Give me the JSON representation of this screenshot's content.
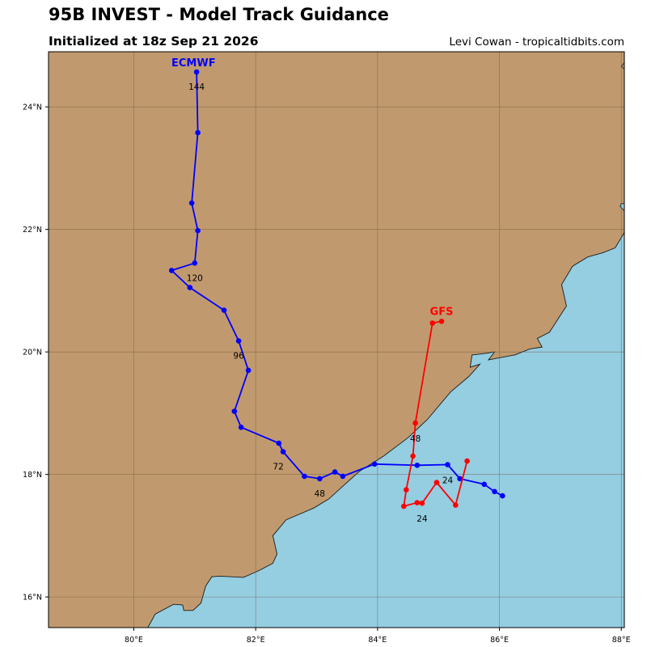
{
  "header": {
    "title": "95B INVEST - Model Track Guidance",
    "subtitle": "Initialized at 18z Sep 21 2026",
    "credit": "Levi Cowan - tropicaltidbits.com"
  },
  "colors": {
    "land": "#c09a6e",
    "ocean": "#95cde1",
    "grid": "#6e5a46",
    "coast": "#1a1a1a",
    "gfs": "#ff0000",
    "ecmwf": "#0000ff"
  },
  "map": {
    "lon_range": [
      78.6,
      88.05
    ],
    "lat_range": [
      15.5,
      24.9
    ],
    "x_ticks": [
      {
        "value": 80,
        "label": "80°E"
      },
      {
        "value": 82,
        "label": "82°E"
      },
      {
        "value": 84,
        "label": "84°E"
      },
      {
        "value": 86,
        "label": "86°E"
      },
      {
        "value": 88,
        "label": "88°E"
      }
    ],
    "y_ticks": [
      {
        "value": 16,
        "label": "16°N"
      },
      {
        "value": 18,
        "label": "18°N"
      },
      {
        "value": 20,
        "label": "20°N"
      },
      {
        "value": 22,
        "label": "22°N"
      },
      {
        "value": 24,
        "label": "24°N"
      }
    ],
    "coastline": [
      [
        80.23,
        15.5
      ],
      [
        80.35,
        15.72
      ],
      [
        80.65,
        15.88
      ],
      [
        80.8,
        15.87
      ],
      [
        80.82,
        15.78
      ],
      [
        80.97,
        15.78
      ],
      [
        81.1,
        15.9
      ],
      [
        81.18,
        16.18
      ],
      [
        81.28,
        16.33
      ],
      [
        81.42,
        16.34
      ],
      [
        81.8,
        16.32
      ],
      [
        82.05,
        16.43
      ],
      [
        82.28,
        16.55
      ],
      [
        82.35,
        16.7
      ],
      [
        82.31,
        16.88
      ],
      [
        82.28,
        17.0
      ],
      [
        82.5,
        17.26
      ],
      [
        82.95,
        17.45
      ],
      [
        83.2,
        17.6
      ],
      [
        83.42,
        17.8
      ],
      [
        83.7,
        18.05
      ],
      [
        84.1,
        18.3
      ],
      [
        84.5,
        18.6
      ],
      [
        84.82,
        18.9
      ],
      [
        85.2,
        19.35
      ],
      [
        85.5,
        19.6
      ],
      [
        85.68,
        19.8
      ],
      [
        85.52,
        19.75
      ],
      [
        85.55,
        19.95
      ],
      [
        85.8,
        19.98
      ],
      [
        85.92,
        20.0
      ],
      [
        85.82,
        19.87
      ],
      [
        86.25,
        19.95
      ],
      [
        86.5,
        20.05
      ],
      [
        86.7,
        20.08
      ],
      [
        86.62,
        20.22
      ],
      [
        86.82,
        20.32
      ],
      [
        86.95,
        20.52
      ],
      [
        87.1,
        20.75
      ],
      [
        87.02,
        21.1
      ],
      [
        87.2,
        21.4
      ],
      [
        87.45,
        21.55
      ],
      [
        87.7,
        21.62
      ],
      [
        87.9,
        21.7
      ],
      [
        88.05,
        21.95
      ]
    ],
    "ne_islet": [
      [
        88.05,
        22.3
      ],
      [
        87.98,
        22.38
      ],
      [
        88.0,
        22.42
      ],
      [
        88.05,
        22.42
      ]
    ],
    "ne_corner": [
      [
        88.05,
        24.72
      ],
      [
        88.0,
        24.66
      ],
      [
        88.05,
        24.62
      ]
    ]
  },
  "tracks": [
    {
      "name": "ECMWF",
      "color": "#0000ff",
      "name_anchor": [
        80.98,
        24.66
      ],
      "points": [
        [
          86.05,
          17.65
        ],
        [
          85.92,
          17.72
        ],
        [
          85.75,
          17.84
        ],
        [
          85.35,
          17.93
        ],
        [
          85.15,
          18.16
        ],
        [
          84.65,
          18.15
        ],
        [
          83.95,
          18.17
        ],
        [
          83.43,
          17.97
        ],
        [
          83.3,
          18.04
        ],
        [
          83.05,
          17.93
        ],
        [
          82.8,
          17.97
        ],
        [
          82.45,
          18.37
        ],
        [
          82.38,
          18.51
        ],
        [
          81.76,
          18.77
        ],
        [
          81.65,
          19.03
        ],
        [
          81.88,
          19.7
        ],
        [
          81.72,
          20.18
        ],
        [
          81.48,
          20.68
        ],
        [
          80.92,
          21.05
        ],
        [
          80.62,
          21.33
        ],
        [
          81.0,
          21.45
        ],
        [
          81.05,
          21.98
        ],
        [
          80.95,
          22.43
        ],
        [
          81.05,
          23.58
        ],
        [
          81.03,
          24.57
        ]
      ],
      "labels": [
        {
          "text": "24",
          "point": 4,
          "dx": 0,
          "dy": 23
        },
        {
          "text": "48",
          "point": 9,
          "dx": 0,
          "dy": 22
        },
        {
          "text": "72",
          "point": 11,
          "dx": -6,
          "dy": 22
        },
        {
          "text": "96",
          "point": 16,
          "dx": 0,
          "dy": 22
        },
        {
          "text": "120",
          "point": 20,
          "dx": 0,
          "dy": 22
        },
        {
          "text": "144",
          "point": 24,
          "dx": 0,
          "dy": 22
        }
      ]
    },
    {
      "name": "GFS",
      "color": "#ff0000",
      "name_anchor": [
        85.05,
        20.6
      ],
      "points": [
        [
          85.47,
          18.22
        ],
        [
          85.28,
          17.5
        ],
        [
          84.97,
          17.87
        ],
        [
          84.73,
          17.53
        ],
        [
          84.65,
          17.54
        ],
        [
          84.43,
          17.48
        ],
        [
          84.47,
          17.75
        ],
        [
          84.58,
          18.3
        ],
        [
          84.62,
          18.84
        ],
        [
          84.9,
          20.47
        ],
        [
          85.05,
          20.5
        ]
      ],
      "labels": [
        {
          "text": "24",
          "point": 3,
          "dx": 0,
          "dy": 23
        },
        {
          "text": "48",
          "point": 8,
          "dx": 0,
          "dy": 23
        }
      ]
    }
  ]
}
